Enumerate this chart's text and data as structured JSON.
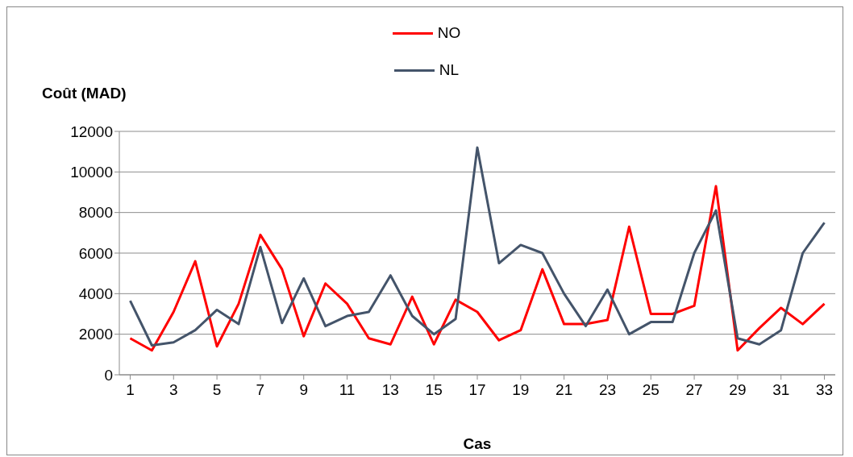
{
  "chart_data": {
    "type": "line",
    "xlabel": "Cas",
    "ylabel": "Coût (MAD)",
    "x": [
      1,
      2,
      3,
      4,
      5,
      6,
      7,
      8,
      9,
      10,
      11,
      12,
      13,
      14,
      15,
      16,
      17,
      18,
      19,
      20,
      21,
      22,
      23,
      24,
      25,
      26,
      27,
      28,
      29,
      30,
      31,
      32,
      33
    ],
    "xlim": [
      0.5,
      33.5
    ],
    "xticks": [
      1,
      3,
      5,
      7,
      9,
      11,
      13,
      15,
      17,
      19,
      21,
      23,
      25,
      27,
      29,
      31,
      33
    ],
    "series": [
      {
        "name": "NO",
        "color": "#ff0000",
        "values": [
          1800,
          1200,
          3100,
          5600,
          1400,
          3500,
          6900,
          5200,
          1900,
          4500,
          3500,
          1800,
          1500,
          3850,
          1500,
          3700,
          3100,
          1700,
          2200,
          5200,
          2500,
          2500,
          2700,
          7300,
          3000,
          3000,
          3400,
          9300,
          1200,
          2300,
          3300,
          2500,
          3500
        ]
      },
      {
        "name": "NL",
        "color": "#44546a",
        "values": [
          3650,
          1450,
          1600,
          2200,
          3200,
          2500,
          6300,
          2550,
          4750,
          2400,
          2900,
          3100,
          4900,
          2900,
          2000,
          2750,
          11200,
          5500,
          6400,
          6000,
          4000,
          2400,
          4200,
          2000,
          2600,
          2600,
          6000,
          8100,
          1800,
          1500,
          2200,
          6000,
          7500
        ]
      }
    ],
    "ylim": [
      0,
      12000
    ],
    "yticks": [
      0,
      2000,
      4000,
      6000,
      8000,
      10000,
      12000
    ],
    "grid": "y",
    "legend": "top"
  }
}
